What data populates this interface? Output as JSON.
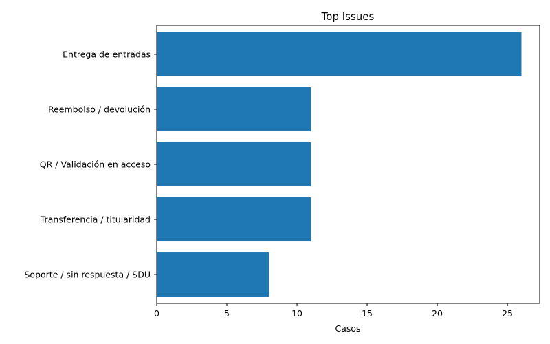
{
  "chart_data": {
    "type": "bar",
    "orientation": "horizontal",
    "title": "Top Issues",
    "xlabel": "Casos",
    "ylabel": "",
    "categories": [
      "Entrega de entradas",
      "Reembolso / devolución",
      "QR / Validación en acceso",
      "Transferencia / titularidad",
      "Soporte / sin respuesta / SDU"
    ],
    "values": [
      26,
      11,
      11,
      11,
      8
    ],
    "xlim": [
      0,
      27.3
    ],
    "xticks": [
      0,
      5,
      10,
      15,
      20,
      25
    ],
    "bar_color": "#1f77b4",
    "grid": false,
    "legend": "none"
  }
}
